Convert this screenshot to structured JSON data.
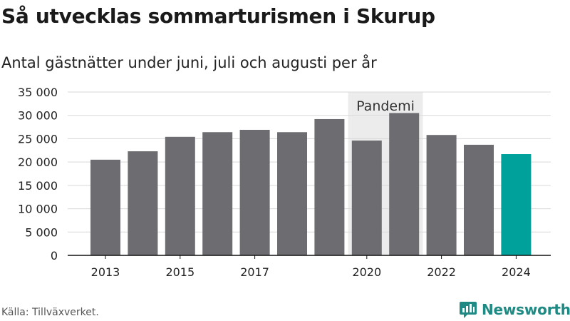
{
  "title": "Så utvecklas sommarturismen i Skurup",
  "subtitle": "Antal gästnätter under juni, juli och augusti per år",
  "source": "Källa: Tillväxverket.",
  "brand": "Newsworthy",
  "colors": {
    "bar": "#6d6c71",
    "highlight": "#00a19a",
    "band": "#ececec",
    "grid": "#d9d9d9",
    "brand": "#1f8a83"
  },
  "chart_data": {
    "type": "bar",
    "categories": [
      "2013",
      "2014",
      "2015",
      "2016",
      "2017",
      "2018",
      "2019",
      "2020",
      "2021",
      "2022",
      "2023",
      "2024"
    ],
    "values": [
      20500,
      22300,
      25400,
      26400,
      26900,
      26400,
      29200,
      24600,
      30500,
      25800,
      23700,
      21700
    ],
    "highlight_index": 11,
    "x_tick_labels": [
      "2013",
      "2015",
      "2017",
      "2020",
      "2022",
      "2024"
    ],
    "y_ticks": [
      0,
      5000,
      10000,
      15000,
      20000,
      25000,
      30000,
      35000
    ],
    "y_tick_labels": [
      "0",
      "5 000",
      "10 000",
      "15 000",
      "20 000",
      "25 000",
      "30 000",
      "35 000"
    ],
    "ylim": [
      0,
      35000
    ],
    "grid": true,
    "annotation": {
      "label": "Pandemi",
      "from": "2020",
      "to": "2021"
    }
  }
}
